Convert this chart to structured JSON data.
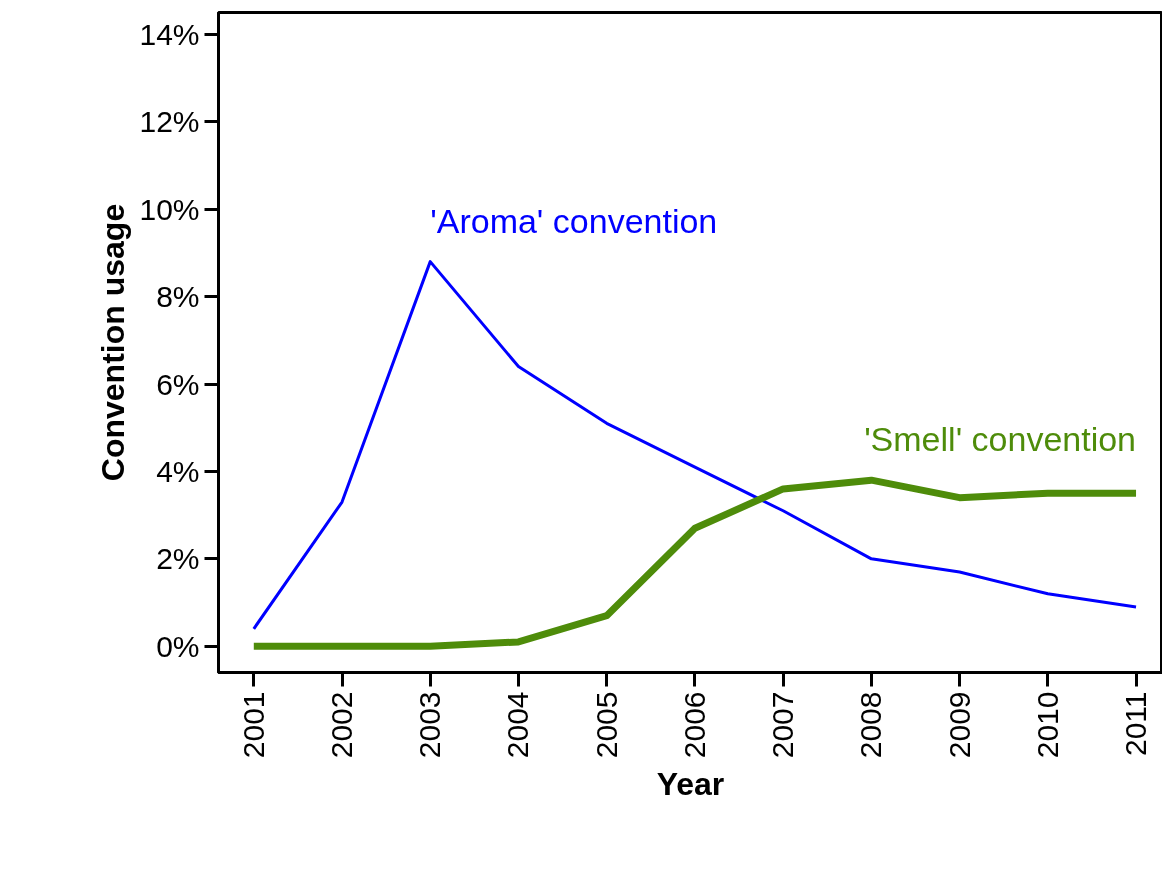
{
  "chart_data": {
    "type": "line",
    "xlabel": "Year",
    "ylabel": "Convention usage",
    "x": [
      2001,
      2002,
      2003,
      2004,
      2005,
      2006,
      2007,
      2008,
      2009,
      2010,
      2011
    ],
    "series": [
      {
        "name": "'Aroma' convention",
        "color": "#0000ff",
        "values": [
          0.4,
          3.3,
          8.8,
          6.4,
          5.1,
          4.1,
          3.1,
          2.0,
          1.7,
          1.2,
          0.9
        ]
      },
      {
        "name": "'Smell' convention",
        "color": "#4e8c0a",
        "values": [
          0.0,
          0.0,
          0.0,
          0.1,
          0.7,
          2.7,
          3.6,
          3.8,
          3.4,
          3.5,
          3.5
        ]
      }
    ],
    "xlim": [
      2000.6,
      2011.3
    ],
    "ylim": [
      -0.6,
      14.5
    ],
    "xticks": [
      2001,
      2002,
      2003,
      2004,
      2005,
      2006,
      2007,
      2008,
      2009,
      2010,
      2011
    ],
    "yticks": [
      {
        "value": 0,
        "label": "0%"
      },
      {
        "value": 2,
        "label": "2%"
      },
      {
        "value": 4,
        "label": "4%"
      },
      {
        "value": 6,
        "label": "6%"
      },
      {
        "value": 8,
        "label": "8%"
      },
      {
        "value": 10,
        "label": "10%"
      },
      {
        "value": 12,
        "label": "12%"
      },
      {
        "value": 14,
        "label": "14%"
      }
    ],
    "grid": false,
    "marker": "none",
    "line_style": "solid"
  }
}
